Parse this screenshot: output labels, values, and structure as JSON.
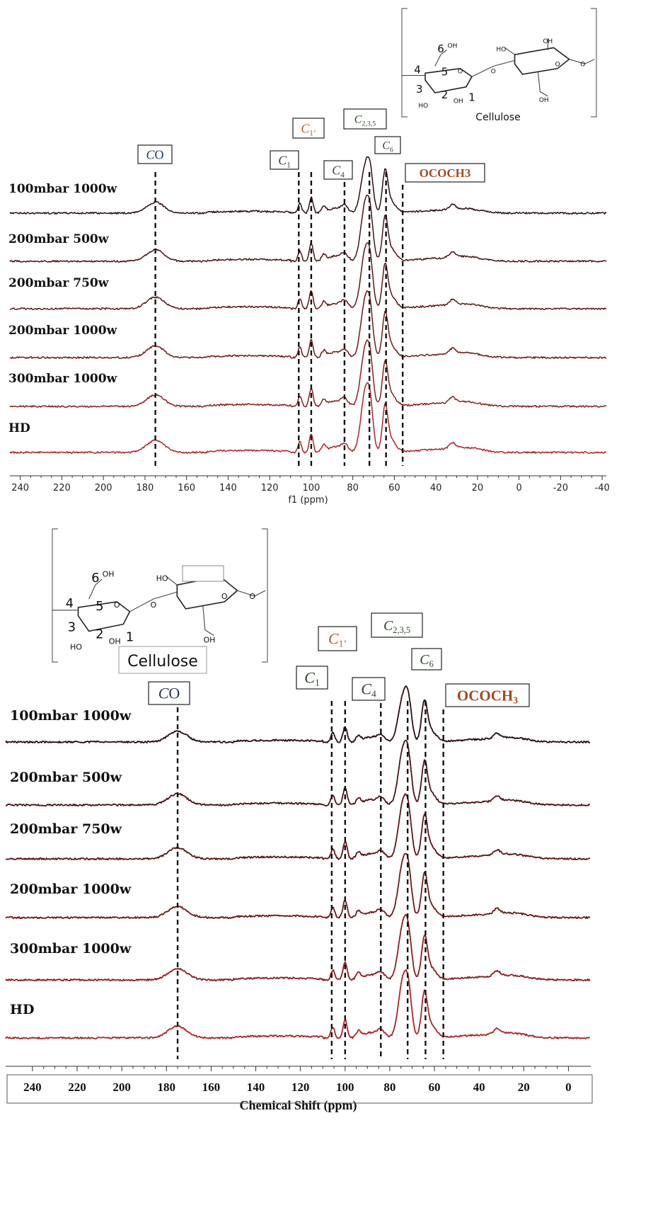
{
  "chart_data": [
    {
      "type": "line",
      "xlabel": "f1 (ppm)",
      "xlim": [
        245,
        -42
      ],
      "x_ticks": [
        "240",
        "220",
        "200",
        "180",
        "160",
        "140",
        "120",
        "100",
        "80",
        "60",
        "40",
        "20",
        "0",
        "-20",
        "-40"
      ],
      "series": [
        {
          "name": "100mbar 1000w",
          "color": "#2a0f10",
          "intensity": 0.9
        },
        {
          "name": "200mbar 500w",
          "color": "#4a1416",
          "intensity": 0.95
        },
        {
          "name": "200mbar 750w",
          "color": "#5d1618",
          "intensity": 0.95
        },
        {
          "name": "200mbar 1000w",
          "color": "#6e1a1c",
          "intensity": 0.95
        },
        {
          "name": "300mbar 1000w",
          "color": "#8a1f22",
          "intensity": 0.95
        },
        {
          "name": "HD",
          "color": "#b32228",
          "intensity": 1.0
        }
      ],
      "peaks": [
        {
          "label": "C",
          "sub": "O",
          "ppm": 175,
          "color": "#1f3a5f",
          "type": "co"
        },
        {
          "label": "C",
          "sub": "1",
          "ppm": 106,
          "color": "#2f4a2a"
        },
        {
          "label": "C",
          "sub": "1’",
          "ppm": 100,
          "color": "#b06030"
        },
        {
          "label": "C",
          "sub": "4",
          "ppm": 84,
          "color": "#2f4a2a"
        },
        {
          "label": "C",
          "sub": "2,3,5",
          "ppm": 72,
          "color": "#2f4a2a"
        },
        {
          "label": "C",
          "sub": "6",
          "ppm": 64,
          "color": "#2f4a2a"
        },
        {
          "label": "OCOCH3",
          "ppm": 56,
          "color": "#a04a20",
          "type": "ococh"
        }
      ],
      "structure_label": "Cellulose"
    },
    {
      "type": "line",
      "xlabel": "Chemical Shift (ppm)",
      "xlim": [
        252,
        -10
      ],
      "x_ticks": [
        "240",
        "220",
        "200",
        "180",
        "160",
        "140",
        "120",
        "100",
        "80",
        "60",
        "40",
        "20",
        "0"
      ],
      "series": [
        {
          "name": "100mbar 1000w",
          "color": "#2a0f10",
          "intensity": 0.9
        },
        {
          "name": "200mbar 500w",
          "color": "#4a1416",
          "intensity": 0.95
        },
        {
          "name": "200mbar 750w",
          "color": "#5d1618",
          "intensity": 0.95
        },
        {
          "name": "200mbar 1000w",
          "color": "#6e1a1c",
          "intensity": 0.95
        },
        {
          "name": "300mbar 1000w",
          "color": "#8a1f22",
          "intensity": 0.95
        },
        {
          "name": "HD",
          "color": "#b32228",
          "intensity": 1.0
        }
      ],
      "peaks": [
        {
          "label": "C",
          "sub": "O",
          "ppm": 175,
          "color": "#1f3a5f",
          "type": "co"
        },
        {
          "label": "C",
          "sub": "1",
          "ppm": 106,
          "color": "#2f4a2a"
        },
        {
          "label": "C",
          "sub": "1’",
          "ppm": 100,
          "color": "#b06030"
        },
        {
          "label": "C",
          "sub": "4",
          "ppm": 84,
          "color": "#2f4a2a"
        },
        {
          "label": "C",
          "sub": "2,3,5",
          "ppm": 72,
          "color": "#2f4a2a"
        },
        {
          "label": "C",
          "sub": "6",
          "ppm": 64,
          "color": "#2f4a2a"
        },
        {
          "label": "OCOCH",
          "sub": "3",
          "ppm": 56,
          "color": "#a04a20",
          "type": "ococh"
        }
      ],
      "structure_label": "Cellulose"
    }
  ]
}
